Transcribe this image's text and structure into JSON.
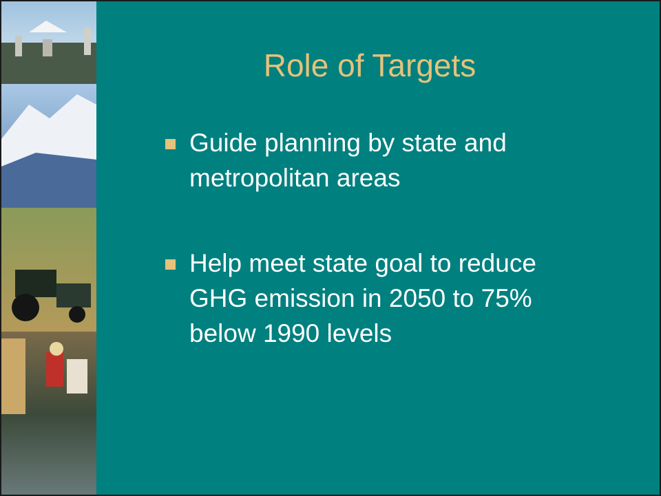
{
  "title": "Role of Targets",
  "bullets": [
    {
      "lines": [
        "Guide planning by state and",
        "metropolitan areas"
      ]
    },
    {
      "lines": [
        "Help meet state goal to reduce",
        "GHG emission in 2050 to 75%",
        "below 1990 levels"
      ]
    }
  ]
}
